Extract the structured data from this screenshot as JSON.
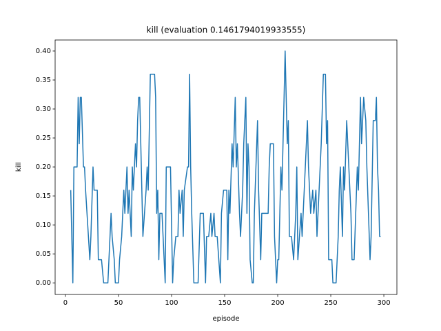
{
  "chart_data": {
    "type": "line",
    "title": "kill (evaluation 0.1461794019933555)",
    "x_label": "episode",
    "y_label": "kill",
    "xlim": [
      -9.7,
      312.3
    ],
    "ylim": [
      -0.02,
      0.419
    ],
    "xticks": [
      0,
      50,
      100,
      150,
      200,
      250,
      300
    ],
    "yticks": [
      {
        "value": 0,
        "label": "0.00"
      },
      {
        "value": 0.05,
        "label": "0.05"
      },
      {
        "value": 0.1,
        "label": "0.10"
      },
      {
        "value": 0.15,
        "label": "0.15"
      },
      {
        "value": 0.2,
        "label": "0.20"
      },
      {
        "value": 0.25,
        "label": "0.25"
      },
      {
        "value": 0.3,
        "label": "0.30"
      },
      {
        "value": 0.35,
        "label": "0.35"
      },
      {
        "value": 0.4,
        "label": "0.40"
      }
    ],
    "color": "#1f77b4",
    "x": [
      5,
      7,
      8,
      11,
      12,
      13,
      14,
      15,
      17,
      18,
      19,
      23,
      24,
      26,
      27,
      30,
      31,
      34,
      36,
      40,
      41,
      42,
      43,
      44,
      46,
      47,
      50,
      51,
      53,
      55,
      56,
      58,
      59,
      60,
      62,
      63,
      64,
      66,
      67,
      68,
      69,
      70,
      71,
      73,
      76,
      77,
      78,
      80,
      84,
      85,
      86,
      87,
      88,
      89,
      91,
      92,
      94,
      95,
      99,
      101,
      102,
      104,
      106,
      107,
      108,
      110,
      111,
      112,
      115,
      116,
      117,
      118,
      119,
      121,
      125,
      127,
      130,
      132,
      133,
      135,
      137,
      138,
      140,
      141,
      143,
      146,
      147,
      149,
      152,
      153,
      154,
      155,
      157,
      158,
      160,
      161,
      162,
      164,
      165,
      167,
      168,
      169,
      170,
      171,
      172,
      173,
      174,
      176,
      177,
      178,
      181,
      182,
      184,
      185,
      191,
      192,
      193,
      196,
      197,
      199,
      200,
      201,
      203,
      204,
      207,
      209,
      210,
      211,
      213,
      215,
      217,
      218,
      219,
      222,
      223,
      226,
      228,
      229,
      231,
      233,
      234,
      236,
      237,
      240,
      241,
      243,
      245,
      246,
      247,
      248,
      251,
      252,
      255,
      257,
      258,
      259,
      261,
      262,
      263,
      265,
      267,
      269,
      270,
      272,
      275,
      276,
      278,
      279,
      281,
      283,
      284,
      287,
      288,
      290,
      292,
      293,
      294,
      295,
      296,
      297
    ],
    "values": [
      0.16,
      0,
      0.2,
      0.2,
      0.32,
      0.24,
      0.32,
      0.32,
      0.2,
      0.2,
      0.16,
      0.04,
      0.08,
      0.2,
      0.16,
      0.16,
      0.04,
      0.04,
      0,
      0,
      0.04,
      0.08,
      0.12,
      0.08,
      0.04,
      0,
      0,
      0.04,
      0.08,
      0.16,
      0.12,
      0.2,
      0.12,
      0.16,
      0.08,
      0.2,
      0.16,
      0.24,
      0.2,
      0.28,
      0.32,
      0.32,
      0.24,
      0.08,
      0.16,
      0.2,
      0.16,
      0.36,
      0.36,
      0.32,
      0.12,
      0.16,
      0.04,
      0.12,
      0.12,
      0.08,
      0,
      0.2,
      0.2,
      0,
      0.04,
      0.08,
      0.08,
      0.16,
      0.12,
      0.16,
      0.08,
      0.16,
      0.2,
      0.2,
      0.36,
      0.2,
      0.12,
      0,
      0,
      0.12,
      0.12,
      0,
      0.08,
      0.08,
      0.12,
      0.08,
      0.12,
      0.08,
      0.08,
      0,
      0.12,
      0.16,
      0.16,
      0.04,
      0.16,
      0.12,
      0.24,
      0.2,
      0.32,
      0.2,
      0.24,
      0.12,
      0.08,
      0.16,
      0.24,
      0.28,
      0.32,
      0.12,
      0.24,
      0.2,
      0.04,
      0,
      0,
      0.12,
      0.28,
      0.16,
      0.04,
      0.12,
      0.12,
      0.2,
      0.24,
      0.24,
      0.08,
      0,
      0.04,
      0.04,
      0.2,
      0.16,
      0.4,
      0.24,
      0.28,
      0.08,
      0.08,
      0.04,
      0.12,
      0.2,
      0.04,
      0.12,
      0.08,
      0.2,
      0.28,
      0.2,
      0.12,
      0.16,
      0.12,
      0.16,
      0.08,
      0.2,
      0.24,
      0.36,
      0.36,
      0.24,
      0.28,
      0.04,
      0.04,
      0,
      0,
      0.08,
      0.16,
      0.2,
      0.08,
      0.2,
      0.16,
      0.28,
      0.2,
      0.12,
      0.04,
      0.04,
      0.2,
      0.16,
      0.32,
      0.24,
      0.32,
      0.28,
      0.2,
      0.04,
      0.08,
      0.28,
      0.28,
      0.32,
      0.2,
      0.16,
      0.08,
      0.08
    ]
  }
}
